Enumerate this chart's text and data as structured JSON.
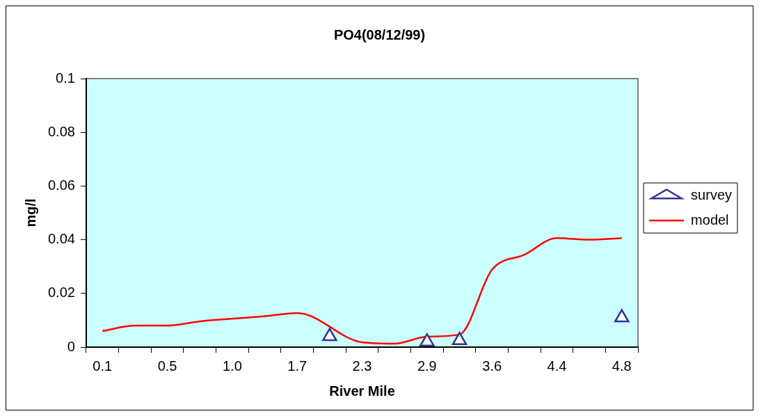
{
  "chart_data": {
    "type": "line",
    "title": "PO4(08/12/99)",
    "xlabel": "River Mile",
    "ylabel": "mg/l",
    "categories": [
      "0.1",
      null,
      "0.5",
      null,
      "1.0",
      null,
      "1.7",
      null,
      "2.3",
      null,
      "2.9",
      null,
      "3.6",
      null,
      "4.4",
      null,
      "4.8"
    ],
    "series": [
      {
        "name": "survey",
        "type": "scatter",
        "color": "#333399",
        "marker": "triangle",
        "values": [
          null,
          null,
          null,
          null,
          null,
          null,
          null,
          0.004,
          null,
          null,
          0.002,
          0.0025,
          null,
          null,
          null,
          null,
          0.011
        ]
      },
      {
        "name": "model",
        "color": "#ff0000",
        "marker": "none",
        "values": [
          0.006,
          0.008,
          0.008,
          0.0096,
          0.0106,
          0.0115,
          0.0127,
          null,
          0.0018,
          0.0013,
          0.0039,
          0.0047,
          0.0288,
          0.0344,
          0.0406,
          0.04,
          0.0406
        ]
      }
    ],
    "ylim": [
      0,
      0.1
    ],
    "yticks": [
      0,
      0.02,
      0.04,
      0.06,
      0.08,
      0.1
    ],
    "grid": false,
    "legend": "right"
  }
}
